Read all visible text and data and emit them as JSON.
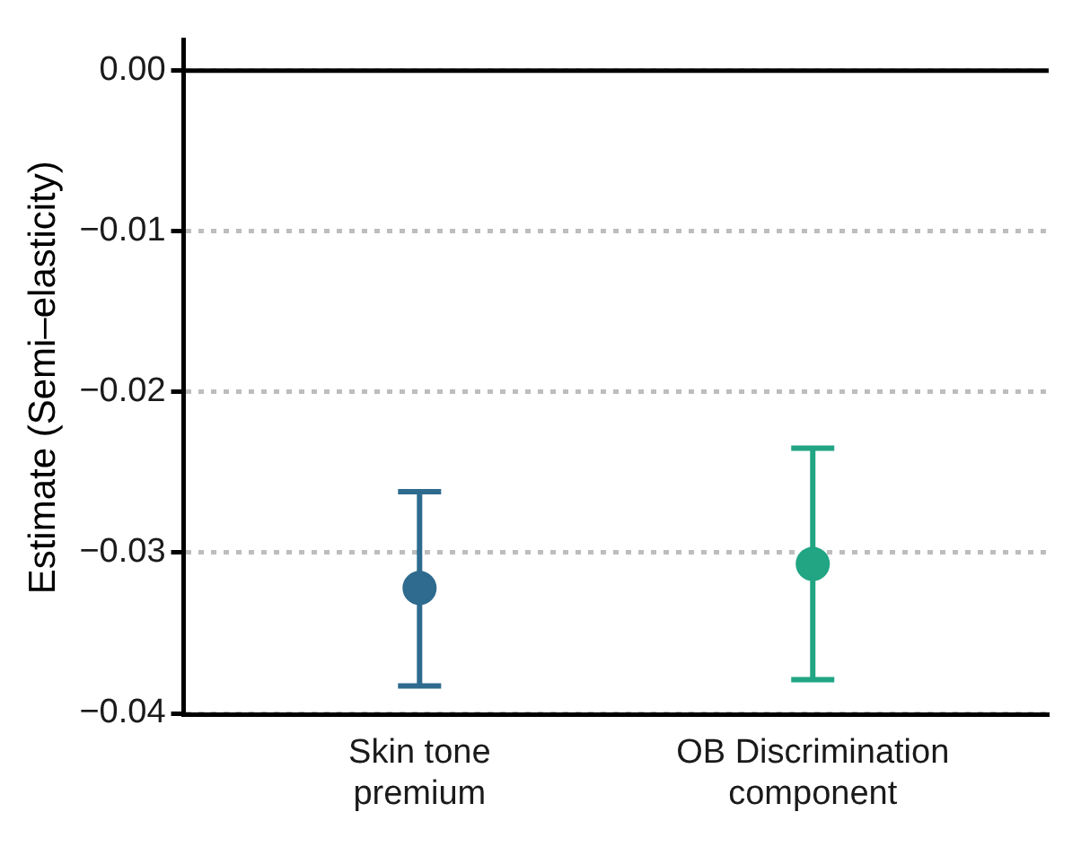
{
  "chart_data": {
    "type": "scatter",
    "ylabel": "Estimate (Semi–elasticity)",
    "categories": [
      "Skin tone\npremium",
      "OB Discrimination\ncomponent"
    ],
    "values": [
      -0.0322,
      -0.0307
    ],
    "errors": [
      [
        -0.0383,
        -0.0262
      ],
      [
        -0.0379,
        -0.0235
      ]
    ],
    "colors": [
      "#2e6b8e",
      "#21a583"
    ],
    "ylim": [
      -0.0401,
      0.0019
    ],
    "yticks": [
      {
        "value": 0,
        "label": "0.00"
      },
      {
        "value": -0.01,
        "label": "−0.01"
      },
      {
        "value": -0.02,
        "label": "−0.02"
      },
      {
        "value": -0.03,
        "label": "−0.03"
      },
      {
        "value": -0.04,
        "label": "−0.04"
      }
    ],
    "ref_lines": [
      {
        "axis": "y",
        "value": 0,
        "color": "#000000",
        "line_style": "solid"
      }
    ],
    "grid": "y",
    "line_style": "dotted",
    "marker": "circle",
    "legend": false
  }
}
